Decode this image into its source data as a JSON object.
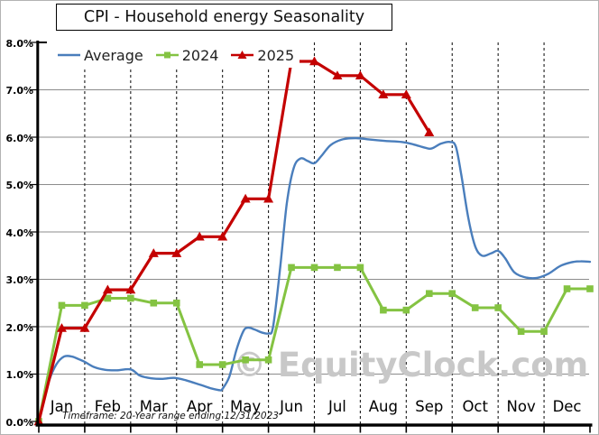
{
  "chart_data": {
    "type": "line",
    "title": "CPI - Household energy Seasonality",
    "footnote": "Timeframe: 20-Year range ending 12/31/2023",
    "watermark": "© EquityClock.com",
    "legend_position": "top-left",
    "x_axis": {
      "months": [
        "Jan",
        "Feb",
        "Mar",
        "Apr",
        "May",
        "Jun",
        "Jul",
        "Aug",
        "Sep",
        "Oct",
        "Nov",
        "Dec"
      ],
      "range_months": [
        0,
        12
      ],
      "gridlines": "dashed vertical at each month boundary"
    },
    "y_axis": {
      "unit": "%",
      "min": 0,
      "max": 8,
      "tick_labels": [
        "8.0%",
        "7.0%",
        "6.0%",
        "5.0%",
        "4.0%",
        "3.0%",
        "2.0%",
        "1.0%",
        "0.0%"
      ],
      "gridlines": "solid horizontal at each 1%"
    },
    "series": [
      {
        "name": "Average",
        "color": "#4a7ebc",
        "marker": "none",
        "smooth": true,
        "x": [
          0,
          0.1,
          0.22,
          0.38,
          0.55,
          0.72,
          0.88,
          1.0,
          1.2,
          1.45,
          1.7,
          2.0,
          2.2,
          2.45,
          2.7,
          2.95,
          3.2,
          3.5,
          3.75,
          3.95,
          4.0,
          4.15,
          4.3,
          4.45,
          4.55,
          4.7,
          4.85,
          5.0,
          5.1,
          5.25,
          5.4,
          5.55,
          5.7,
          5.85,
          6.0,
          6.15,
          6.35,
          6.6,
          6.9,
          7.2,
          7.55,
          7.9,
          8.15,
          8.4,
          8.55,
          8.75,
          8.95,
          9.08,
          9.2,
          9.35,
          9.5,
          9.65,
          9.85,
          10.0,
          10.15,
          10.35,
          10.6,
          10.85,
          11.1,
          11.35,
          11.6,
          11.8,
          12.0
        ],
        "values": [
          0,
          0.4,
          0.85,
          1.2,
          1.37,
          1.37,
          1.31,
          1.26,
          1.15,
          1.09,
          1.08,
          1.1,
          0.97,
          0.91,
          0.9,
          0.92,
          0.87,
          0.78,
          0.7,
          0.66,
          0.69,
          0.95,
          1.5,
          1.9,
          1.98,
          1.94,
          1.88,
          1.86,
          2.0,
          3.2,
          4.6,
          5.35,
          5.55,
          5.5,
          5.45,
          5.6,
          5.83,
          5.95,
          5.98,
          5.95,
          5.92,
          5.9,
          5.85,
          5.78,
          5.76,
          5.86,
          5.9,
          5.8,
          5.2,
          4.3,
          3.7,
          3.5,
          3.55,
          3.6,
          3.45,
          3.15,
          3.04,
          3.03,
          3.12,
          3.28,
          3.36,
          3.38,
          3.37
        ]
      },
      {
        "name": "2024",
        "color": "#84c342",
        "marker": "square",
        "smooth": false,
        "x": [
          0,
          0.5,
          1,
          1.5,
          2,
          2.5,
          3,
          3.5,
          4,
          4.5,
          5,
          5.5,
          6,
          6.5,
          7,
          7.5,
          8,
          8.5,
          9,
          9.5,
          10,
          10.5,
          11,
          11.5,
          12
        ],
        "values": [
          0,
          2.45,
          2.45,
          2.6,
          2.6,
          2.5,
          2.5,
          1.2,
          1.2,
          1.3,
          1.3,
          3.25,
          3.25,
          3.25,
          3.25,
          2.35,
          2.35,
          2.7,
          2.7,
          2.4,
          2.4,
          1.9,
          1.9,
          2.8,
          2.8
        ]
      },
      {
        "name": "2025",
        "color": "#c40000",
        "marker": "triangle-up",
        "smooth": false,
        "x": [
          0,
          0.5,
          1,
          1.5,
          2,
          2.5,
          3,
          3.5,
          4,
          4.5,
          5,
          5.5,
          6,
          6.5,
          7,
          7.5,
          8,
          8.5
        ],
        "values": [
          0,
          1.97,
          1.97,
          2.78,
          2.78,
          3.55,
          3.55,
          3.9,
          3.9,
          4.7,
          4.7,
          7.6,
          7.6,
          7.3,
          7.3,
          6.9,
          6.9,
          6.1
        ]
      }
    ]
  }
}
